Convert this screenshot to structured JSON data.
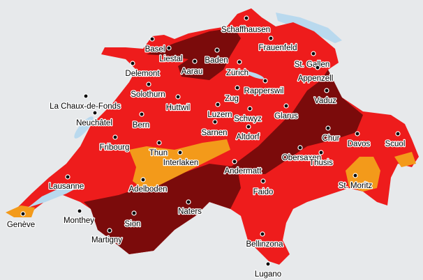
{
  "map": {
    "colors": {
      "background": "#e7e9eb",
      "level_red": "#ee1c1c",
      "level_dark_red": "#7b0b0b",
      "level_orange": "#f39a1a",
      "lake": "#b9d9ee"
    },
    "cities": [
      {
        "name": "Schaffhausen"
      },
      {
        "name": "Basel"
      },
      {
        "name": "Liestal"
      },
      {
        "name": "Baden"
      },
      {
        "name": "Frauenfeld"
      },
      {
        "name": "Delemont"
      },
      {
        "name": "Aarau"
      },
      {
        "name": "Zürich"
      },
      {
        "name": "St. Gallen"
      },
      {
        "name": "Appenzell"
      },
      {
        "name": "Solothurn"
      },
      {
        "name": "Rapperswil"
      },
      {
        "name": "Zug"
      },
      {
        "name": "Huttwil"
      },
      {
        "name": "La Chaux-de-Fonds"
      },
      {
        "name": "Vaduz"
      },
      {
        "name": "Luzern"
      },
      {
        "name": "Schwyz"
      },
      {
        "name": "Glarus"
      },
      {
        "name": "Neuchâtel"
      },
      {
        "name": "Bern"
      },
      {
        "name": "Sarnen"
      },
      {
        "name": "Altdorf"
      },
      {
        "name": "Chur"
      },
      {
        "name": "Davos"
      },
      {
        "name": "Scuol"
      },
      {
        "name": "Fribourg"
      },
      {
        "name": "Thun"
      },
      {
        "name": "Interlaken"
      },
      {
        "name": "Obersaxen"
      },
      {
        "name": "Thusis"
      },
      {
        "name": "Andermatt"
      },
      {
        "name": "Lausanne"
      },
      {
        "name": "Adelboden"
      },
      {
        "name": "Faido"
      },
      {
        "name": "St. Moritz"
      },
      {
        "name": "Genève"
      },
      {
        "name": "Monthey"
      },
      {
        "name": "Naters"
      },
      {
        "name": "Sion"
      },
      {
        "name": "Martigny"
      },
      {
        "name": "Bellinzona"
      },
      {
        "name": "Lugano"
      }
    ]
  }
}
